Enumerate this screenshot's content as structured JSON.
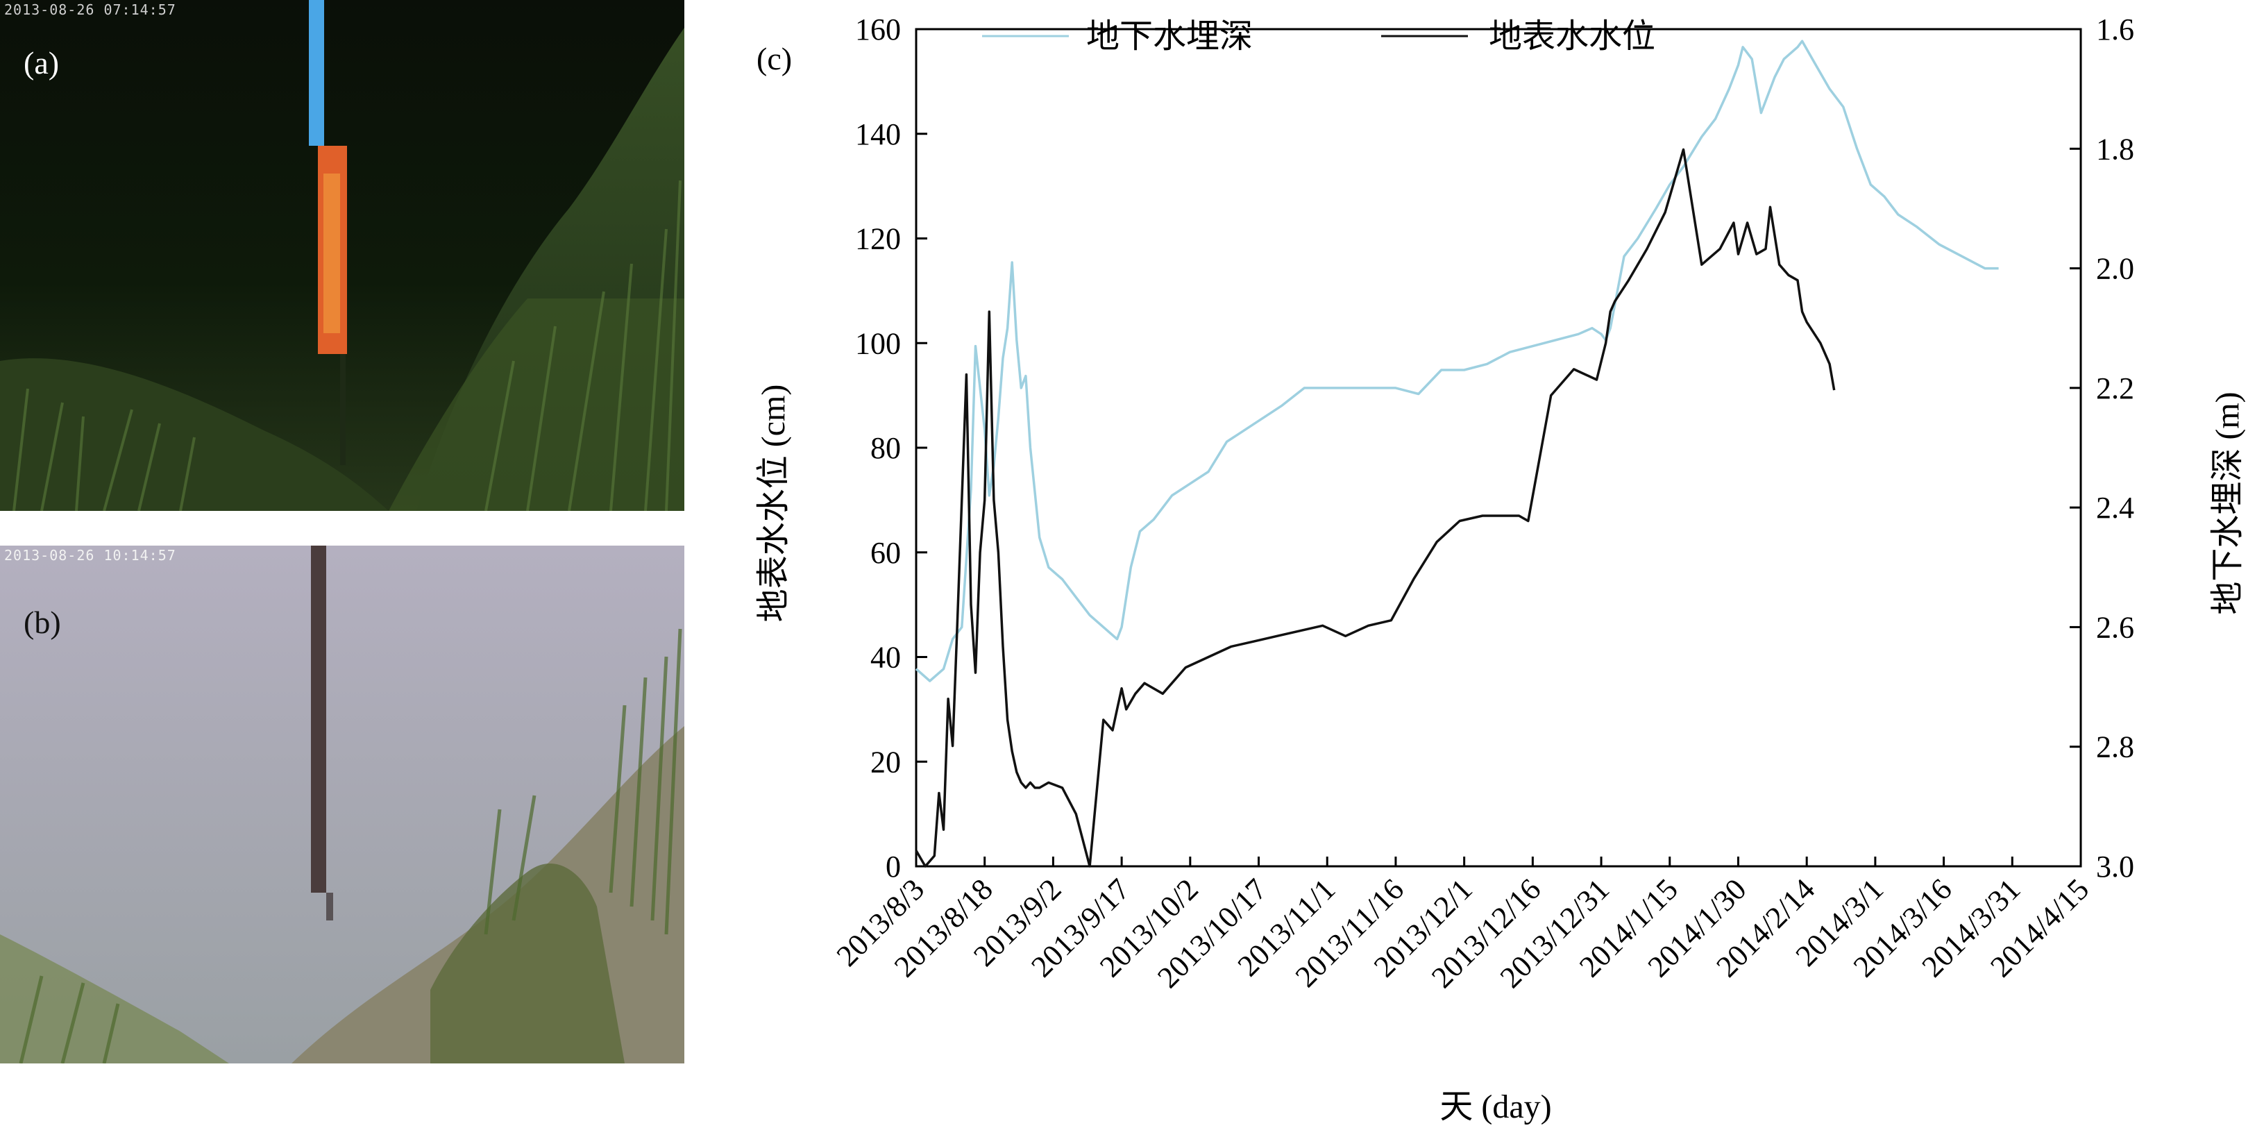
{
  "photos": {
    "a": {
      "label": "(a)",
      "timestamp": "2013-08-26  07:14:57"
    },
    "b": {
      "label": "(b)",
      "timestamp": "2013-08-26  10:14:57"
    }
  },
  "chart": {
    "panel_label": "(c)"
  },
  "colors": {
    "groundwater": "#9ed0e0",
    "surface": "#111111"
  },
  "chart_data": {
    "type": "line",
    "title": "",
    "xlabel": "天 (day)",
    "ylabel_left": "地表水水位 (cm)",
    "ylabel_right": "地下水埋深 (m)",
    "xlim": [
      "2013-08-03",
      "2014-04-15"
    ],
    "ylim_left": [
      0,
      160
    ],
    "ylim_right": [
      3.0,
      1.6
    ],
    "x_ticks": [
      "2013/8/3",
      "2013/8/18",
      "2013/9/2",
      "2013/9/17",
      "2013/10/2",
      "2013/10/17",
      "2013/11/1",
      "2013/11/16",
      "2013/12/1",
      "2013/12/16",
      "2013/12/31",
      "2014/1/15",
      "2014/1/30",
      "2014/2/14",
      "2014/3/1",
      "2014/3/16",
      "2014/3/31",
      "2014/4/15"
    ],
    "y_ticks_left": [
      0,
      20,
      40,
      60,
      80,
      100,
      120,
      140,
      160
    ],
    "y_ticks_right": [
      "1.6",
      "1.8",
      "2.0",
      "2.2",
      "2.4",
      "2.6",
      "2.8",
      "3.0"
    ],
    "legend_position": "top",
    "grid": false,
    "series": [
      {
        "name": "地下水埋深",
        "axis": "right",
        "color": "#9ed0e0",
        "x": [
          "2013-08-03",
          "2013-08-06",
          "2013-08-09",
          "2013-08-11",
          "2013-08-13",
          "2013-08-15",
          "2013-08-16",
          "2013-08-18",
          "2013-08-19",
          "2013-08-20",
          "2013-08-21",
          "2013-08-22",
          "2013-08-23",
          "2013-08-24",
          "2013-08-25",
          "2013-08-26",
          "2013-08-27",
          "2013-08-28",
          "2013-08-30",
          "2013-09-01",
          "2013-09-04",
          "2013-09-07",
          "2013-09-10",
          "2013-09-13",
          "2013-09-16",
          "2013-09-17",
          "2013-09-19",
          "2013-09-21",
          "2013-09-24",
          "2013-09-28",
          "2013-10-02",
          "2013-10-06",
          "2013-10-10",
          "2013-10-14",
          "2013-10-18",
          "2013-10-22",
          "2013-10-27",
          "2013-11-01",
          "2013-11-06",
          "2013-11-11",
          "2013-11-16",
          "2013-11-21",
          "2013-11-26",
          "2013-12-01",
          "2013-12-06",
          "2013-12-11",
          "2013-12-16",
          "2013-12-21",
          "2013-12-26",
          "2013-12-29",
          "2013-12-31",
          "2014-01-01",
          "2014-01-02",
          "2014-01-05",
          "2014-01-08",
          "2014-01-12",
          "2014-01-15",
          "2014-01-18",
          "2014-01-22",
          "2014-01-25",
          "2014-01-28",
          "2014-01-30",
          "2014-01-31",
          "2014-02-02",
          "2014-02-04",
          "2014-02-05",
          "2014-02-07",
          "2014-02-09",
          "2014-02-12",
          "2014-02-13",
          "2014-02-16",
          "2014-02-19",
          "2014-02-22",
          "2014-02-25",
          "2014-02-28",
          "2014-03-03",
          "2014-03-06",
          "2014-03-10",
          "2014-03-15",
          "2014-03-20",
          "2014-03-25",
          "2014-03-28"
        ],
        "values": [
          2.67,
          2.69,
          2.67,
          2.62,
          2.6,
          2.37,
          2.13,
          2.27,
          2.38,
          2.33,
          2.25,
          2.15,
          2.1,
          1.99,
          2.12,
          2.2,
          2.18,
          2.3,
          2.45,
          2.5,
          2.52,
          2.55,
          2.58,
          2.6,
          2.62,
          2.6,
          2.5,
          2.44,
          2.42,
          2.38,
          2.36,
          2.34,
          2.29,
          2.27,
          2.25,
          2.23,
          2.2,
          2.2,
          2.2,
          2.2,
          2.2,
          2.21,
          2.17,
          2.17,
          2.16,
          2.14,
          2.13,
          2.12,
          2.11,
          2.1,
          2.11,
          2.12,
          2.1,
          1.98,
          1.95,
          1.9,
          1.86,
          1.83,
          1.78,
          1.75,
          1.7,
          1.66,
          1.63,
          1.65,
          1.74,
          1.72,
          1.68,
          1.65,
          1.63,
          1.62,
          1.66,
          1.7,
          1.73,
          1.8,
          1.86,
          1.88,
          1.91,
          1.93,
          1.96,
          1.98,
          2.0,
          2.0
        ]
      },
      {
        "name": "地表水水位",
        "axis": "left",
        "color": "#111111",
        "x": [
          "2013-08-03",
          "2013-08-05",
          "2013-08-07",
          "2013-08-08",
          "2013-08-09",
          "2013-08-10",
          "2013-08-11",
          "2013-08-12",
          "2013-08-14",
          "2013-08-15",
          "2013-08-16",
          "2013-08-17",
          "2013-08-18",
          "2013-08-19",
          "2013-08-20",
          "2013-08-21",
          "2013-08-22",
          "2013-08-23",
          "2013-08-24",
          "2013-08-25",
          "2013-08-26",
          "2013-08-27",
          "2013-08-28",
          "2013-08-29",
          "2013-08-30",
          "2013-09-01",
          "2013-09-04",
          "2013-09-07",
          "2013-09-10",
          "2013-09-13",
          "2013-09-15",
          "2013-09-16",
          "2013-09-17",
          "2013-09-18",
          "2013-09-20",
          "2013-09-22",
          "2013-09-26",
          "2013-10-01",
          "2013-10-06",
          "2013-10-11",
          "2013-10-16",
          "2013-10-21",
          "2013-10-26",
          "2013-10-31",
          "2013-11-05",
          "2013-11-10",
          "2013-11-15",
          "2013-11-20",
          "2013-11-25",
          "2013-11-30",
          "2013-12-05",
          "2013-12-10",
          "2013-12-13",
          "2013-12-15",
          "2013-12-20",
          "2013-12-25",
          "2013-12-30",
          "2014-01-01",
          "2014-01-02",
          "2014-01-03",
          "2014-01-06",
          "2014-01-10",
          "2014-01-14",
          "2014-01-18",
          "2014-01-22",
          "2014-01-26",
          "2014-01-29",
          "2014-01-30",
          "2014-01-31",
          "2014-02-01",
          "2014-02-03",
          "2014-02-05",
          "2014-02-06",
          "2014-02-08",
          "2014-02-10",
          "2014-02-12",
          "2014-02-13",
          "2014-02-14",
          "2014-02-17",
          "2014-02-19",
          "2014-02-20",
          "2014-02-23",
          "2014-02-25",
          "2014-02-28",
          "2014-03-01"
        ],
        "values": [
          3,
          0,
          2,
          14,
          7,
          32,
          23,
          46,
          94,
          50,
          37,
          60,
          70,
          106,
          70,
          60,
          42,
          28,
          22,
          18,
          16,
          15,
          16,
          15,
          15,
          16,
          15,
          10,
          0,
          28,
          26,
          30,
          34,
          30,
          33,
          35,
          33,
          38,
          40,
          42,
          43,
          44,
          45,
          46,
          44,
          46,
          47,
          55,
          62,
          66,
          67,
          67,
          67,
          66,
          90,
          95,
          93,
          100,
          106,
          108,
          112,
          118,
          125,
          137,
          115,
          118,
          123,
          117,
          120,
          123,
          117,
          118,
          126,
          115,
          113,
          112,
          106,
          104,
          100,
          96,
          91,
          null,
          null,
          null,
          null
        ]
      }
    ]
  }
}
